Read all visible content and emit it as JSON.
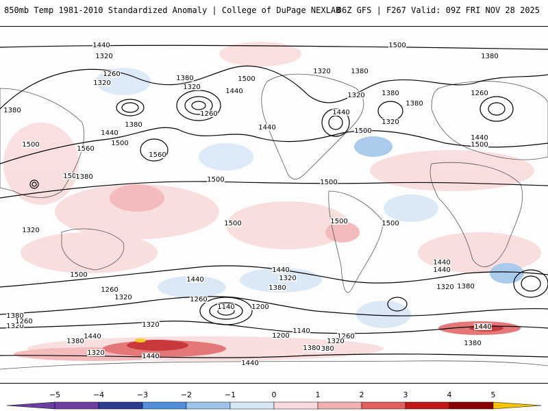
{
  "header": {
    "title_left": "850mb Temp 1981-2010 Standardized Anomaly | College of DuPage NEXLAB",
    "title_right": "06Z GFS | F267 Valid: 09Z FRI NOV 28 2025"
  },
  "map": {
    "contour_labels": [
      "1440",
      "1320",
      "1260",
      "1320",
      "1380",
      "1320",
      "1440",
      "1500",
      "1260",
      "1380",
      "1440",
      "1500",
      "1560",
      "1500",
      "1560",
      "1500",
      "1500",
      "1500",
      "1380",
      "1320",
      "1440",
      "1500",
      "1380",
      "1320",
      "1440",
      "1380",
      "1500",
      "1380",
      "1260",
      "1440",
      "1320",
      "1380",
      "1500",
      "1500",
      "1440",
      "1320",
      "1260",
      "1140",
      "1200",
      "1320",
      "1440",
      "1380",
      "1260",
      "1320",
      "1440",
      "1440",
      "1320",
      "1380",
      "1380",
      "1200",
      "1140",
      "1260",
      "1320",
      "1380",
      "1440",
      "1380",
      "1500",
      "1440",
      "1320",
      "1380",
      "1260",
      "1320",
      "1440",
      "1380",
      "1440",
      "1500",
      "1320",
      "1380",
      "1500"
    ],
    "colors": {
      "neg5": "#6a3fa0",
      "neg4": "#2c3e8f",
      "neg3": "#4f8fd6",
      "neg2": "#9dc3ea",
      "neg1": "#d6e6f6",
      "zero": "#ffffff",
      "pos1": "#f9d9d9",
      "pos2": "#f2b0b0",
      "pos3": "#e06060",
      "pos4": "#c01818",
      "pos5": "#8a0000",
      "pos6": "#f5c400"
    }
  },
  "colorbar": {
    "labels": [
      "−5",
      "−4",
      "−3",
      "−2",
      "−1",
      "0",
      "1",
      "2",
      "3",
      "4",
      "5"
    ]
  }
}
